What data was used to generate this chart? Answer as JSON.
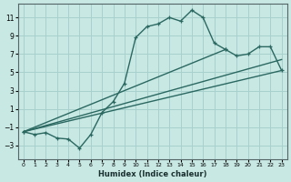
{
  "xlabel": "Humidex (Indice chaleur)",
  "xlim": [
    -0.5,
    23.5
  ],
  "ylim": [
    -4.5,
    12.5
  ],
  "yticks": [
    -3,
    -1,
    1,
    3,
    5,
    7,
    9,
    11
  ],
  "xticks": [
    0,
    1,
    2,
    3,
    4,
    5,
    6,
    7,
    8,
    9,
    10,
    11,
    12,
    13,
    14,
    15,
    16,
    17,
    18,
    19,
    20,
    21,
    22,
    23
  ],
  "bg_color": "#c8e8e4",
  "grid_color": "#a8d0cc",
  "line_color": "#2a6860",
  "curve1_x": [
    0,
    1,
    2,
    3,
    4,
    5,
    6,
    7,
    8,
    9,
    10,
    11,
    12,
    13,
    14,
    15,
    16,
    17,
    18
  ],
  "curve1_y": [
    -1.5,
    -1.8,
    -1.6,
    -2.2,
    -2.3,
    -3.3,
    -1.8,
    0.6,
    1.8,
    3.8,
    8.8,
    10.0,
    10.3,
    11.0,
    10.6,
    11.8,
    11.0,
    8.2,
    7.5
  ],
  "curve2_x": [
    0,
    18,
    19,
    20,
    21,
    22,
    23
  ],
  "curve2_y": [
    -1.5,
    7.5,
    6.8,
    7.0,
    7.8,
    7.8,
    5.2
  ],
  "curve3_x": [
    0,
    23
  ],
  "curve3_y": [
    -1.5,
    5.2
  ],
  "curve4_x": [
    0,
    23
  ],
  "curve4_y": [
    -1.5,
    6.4
  ]
}
